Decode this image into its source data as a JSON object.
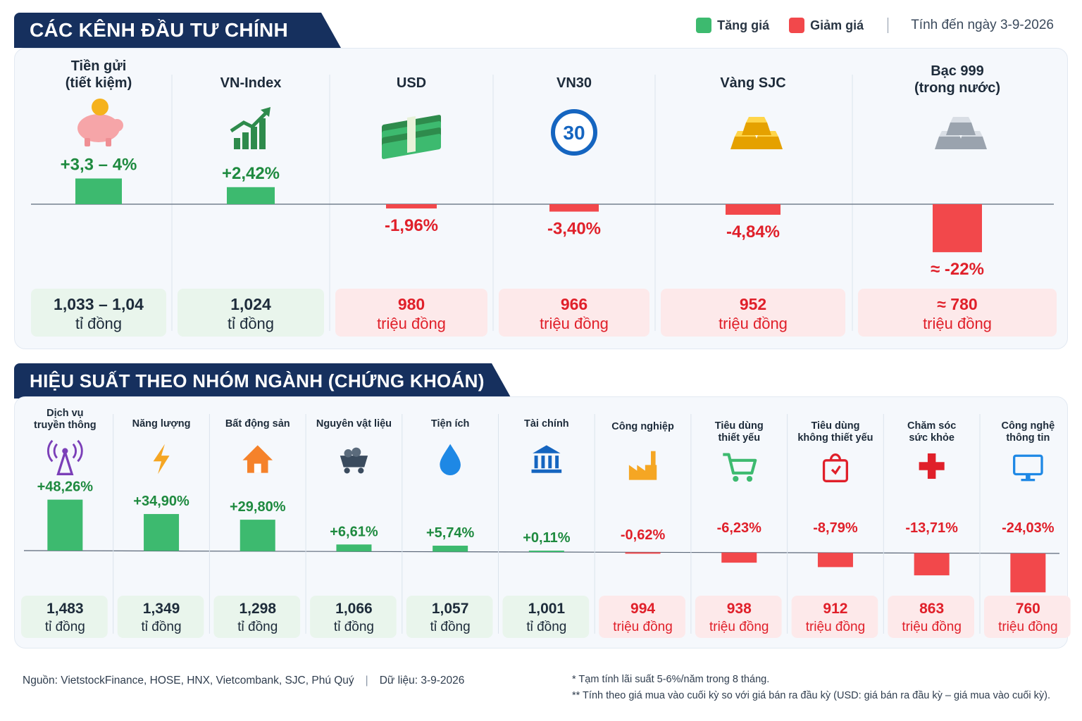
{
  "header": {
    "title1": "CÁC KÊNH ĐẦU TƯ CHÍNH",
    "title2": "HIỆU SUẤT THEO NHÓM NGÀNH (CHỨNG KHOÁN)"
  },
  "legend": {
    "up_label": "Tăng giá",
    "down_label": "Giảm giá",
    "date_text": "Tính đến ngày 3-9-2026"
  },
  "colors": {
    "up": "#3dba6f",
    "down": "#f2484b",
    "up_text": "#1e8a3f",
    "down_text": "#e0202a",
    "up_box": "#e9f5ec",
    "down_box": "#fde9ea",
    "navy": "#16305e"
  },
  "chart_data": [
    {
      "type": "bar",
      "title": "CÁC KÊNH ĐẦU TƯ CHÍNH",
      "categories": [
        "Tiền gửi\n(tiết kiệm)",
        "VN-Index",
        "USD",
        "VN30",
        "Vàng SJC",
        "Bạc 999\n(trong nước)"
      ],
      "values": [
        3.65,
        2.42,
        -1.96,
        -3.4,
        -4.84,
        -22
      ],
      "value_labels": [
        "+3,3 – 4%",
        "+2,42%",
        "-1,96%",
        "-3,40%",
        "-4,84%",
        "≈ -22%"
      ],
      "amounts": [
        [
          "1,033 – 1,04",
          "tỉ đồng"
        ],
        [
          "1,024",
          "tỉ đồng"
        ],
        [
          "980",
          "triệu đồng"
        ],
        [
          "966",
          "triệu đồng"
        ],
        [
          "952",
          "triệu đồng"
        ],
        [
          "≈ 780",
          "triệu đồng"
        ]
      ],
      "icons": [
        "piggy-bank-icon",
        "growth-chart-icon",
        "cash-stack-icon",
        "vn30-badge-icon",
        "gold-bars-icon",
        "silver-bars-icon"
      ],
      "icon_text": [
        "",
        "",
        "",
        "30",
        "",
        ""
      ]
    },
    {
      "type": "bar",
      "title": "HIỆU SUẤT THEO NHÓM NGÀNH (CHỨNG KHOÁN)",
      "categories": [
        "Dịch vụ\ntruyền thông",
        "Năng lượng",
        "Bất động sản",
        "Nguyên vật liệu",
        "Tiện ích",
        "Tài chính",
        "Công nghiệp",
        "Tiêu dùng\nthiết yếu",
        "Tiêu dùng\nkhông thiết yếu",
        "Chăm sóc\nsức khỏe",
        "Công nghệ\nthông tin"
      ],
      "values": [
        48.26,
        34.9,
        29.8,
        6.61,
        5.74,
        0.11,
        -0.62,
        -6.23,
        -8.79,
        -13.71,
        -24.03
      ],
      "value_labels": [
        "+48,26%",
        "+34,90%",
        "+29,80%",
        "+6,61%",
        "+5,74%",
        "+0,11%",
        "-0,62%",
        "-6,23%",
        "-8,79%",
        "-13,71%",
        "-24,03%"
      ],
      "amounts": [
        [
          "1,483",
          "tỉ đồng"
        ],
        [
          "1,349",
          "tỉ đồng"
        ],
        [
          "1,298",
          "tỉ đồng"
        ],
        [
          "1,066",
          "tỉ đồng"
        ],
        [
          "1,057",
          "tỉ đồng"
        ],
        [
          "1,001",
          "tỉ đồng"
        ],
        [
          "994",
          "triệu đồng"
        ],
        [
          "938",
          "triệu đồng"
        ],
        [
          "912",
          "triệu đồng"
        ],
        [
          "863",
          "triệu đồng"
        ],
        [
          "760",
          "triệu đồng"
        ]
      ],
      "icons": [
        "antenna-tower-icon",
        "lightning-icon",
        "house-icon",
        "mine-cart-icon",
        "water-drop-icon",
        "bank-building-icon",
        "factory-icon",
        "shopping-cart-icon",
        "shopping-bag-icon",
        "medical-cross-icon",
        "monitor-icon"
      ]
    }
  ],
  "footer": {
    "source": "Nguồn: VietstockFinance, HOSE, HNX, Vietcombank, SJC, Phú Quý",
    "separator": "|",
    "data_date": "Dữ liệu: 3-9-2026",
    "note1": "* Tạm tính lãi suất 5-6%/năm trong 8 tháng.",
    "note2": "** Tính theo giá mua vào cuối kỳ so với giá bán ra đầu kỳ (USD: giá bán ra đầu kỳ – giá mua vào cuối kỳ)."
  }
}
